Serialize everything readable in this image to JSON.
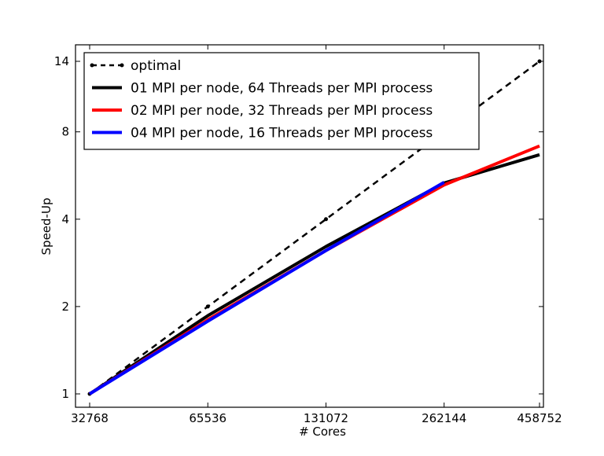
{
  "chart_data": {
    "type": "line",
    "title": "",
    "xlabel": "# Cores",
    "ylabel": "Speed-Up",
    "xscale": "log2",
    "yscale": "log2",
    "xlim": [
      32768,
      458752
    ],
    "ylim": [
      1,
      14
    ],
    "xticks": [
      32768,
      65536,
      131072,
      262144,
      458752
    ],
    "yticks": [
      1,
      2,
      4,
      8,
      14
    ],
    "grid": false,
    "legend_position": "top-left",
    "series": [
      {
        "name": "optimal",
        "color": "#000000",
        "style": "dashed-dot-markers",
        "x": [
          32768,
          65536,
          131072,
          262144,
          458752
        ],
        "y": [
          1,
          2,
          4,
          8,
          14
        ]
      },
      {
        "name": "01 MPI per node, 64 Threads per MPI process",
        "color": "#000000",
        "style": "solid",
        "x": [
          32768,
          65536,
          131072,
          262144,
          458752
        ],
        "y": [
          1,
          1.86,
          3.22,
          5.33,
          6.67
        ]
      },
      {
        "name": "02 MPI per node, 32 Threads per MPI process",
        "color": "#ff0000",
        "style": "solid",
        "x": [
          32768,
          65536,
          131072,
          262144,
          458752
        ],
        "y": [
          1,
          1.8,
          3.12,
          5.25,
          7.15
        ]
      },
      {
        "name": "04 MPI per node, 16 Threads per MPI process",
        "color": "#0000ff",
        "style": "solid",
        "x": [
          32768,
          65536,
          131072,
          262144
        ],
        "y": [
          1,
          1.78,
          3.12,
          5.36
        ]
      }
    ]
  }
}
